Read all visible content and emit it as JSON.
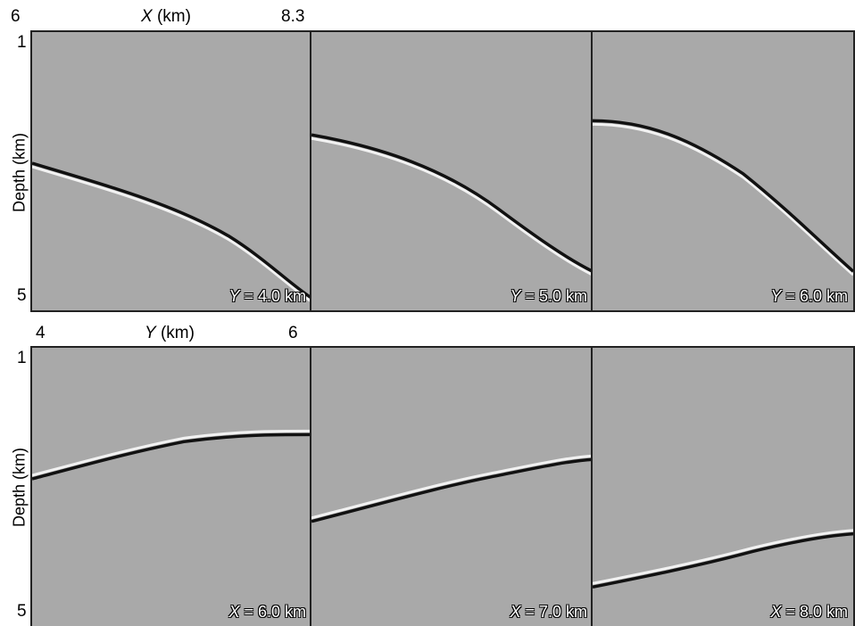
{
  "top_row": {
    "x_axis": {
      "min_label": "6",
      "title_var": "X",
      "title_unit": " (km)",
      "max_label": "8.3"
    },
    "y_axis": {
      "top_label": "1",
      "bottom_label": "5",
      "title": "Depth (km)"
    },
    "panels": [
      {
        "var": "Y",
        "text": " = 4.0 km"
      },
      {
        "var": "Y",
        "text": " = 5.0 km"
      },
      {
        "var": "Y",
        "text": " = 6.0 km"
      }
    ]
  },
  "bottom_row": {
    "x_axis": {
      "min_label": "4",
      "title_var": "Y",
      "title_unit": " (km)",
      "max_label": "6"
    },
    "y_axis": {
      "top_label": "1",
      "bottom_label": "5",
      "title": "Depth (km)"
    },
    "panels": [
      {
        "var": "X",
        "text": " = 6.0 km"
      },
      {
        "var": "X",
        "text": " = 7.0 km"
      },
      {
        "var": "X",
        "text": " = 8.0 km"
      }
    ]
  },
  "colors": {
    "background": "#a9a9a9",
    "reflector_dark": "#111111",
    "reflector_light": "#f2f2f2"
  }
}
